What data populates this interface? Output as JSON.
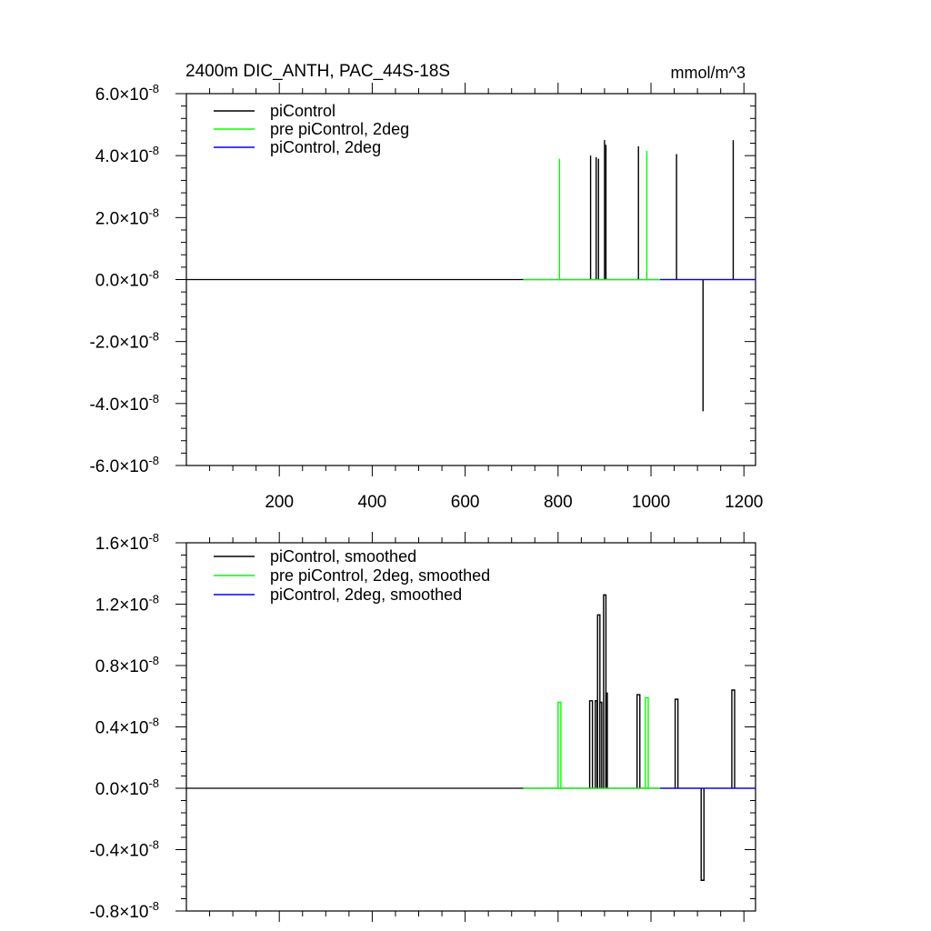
{
  "chart_data": [
    {
      "type": "line",
      "title": "2400m DIC_ANTH, PAC_44S-18S",
      "units": "mmol/m^3",
      "xlim": [
        0,
        1225
      ],
      "ylim": [
        -6e-08,
        6e-08
      ],
      "x_ticks": [
        200,
        400,
        600,
        800,
        1000,
        1200
      ],
      "x_tick_labels": [
        "200",
        "400",
        "600",
        "800",
        "1000",
        "1200"
      ],
      "y_ticks": [
        -6e-08,
        -4e-08,
        -2e-08,
        0,
        2e-08,
        4e-08,
        6e-08
      ],
      "y_tick_mantissas": [
        "-6.0",
        "-4.0",
        "-2.0",
        "0.0",
        "2.0",
        "4.0",
        "6.0"
      ],
      "y_tick_times": "×10",
      "y_tick_exponent": "-8",
      "legend_placement": "top-left",
      "series": [
        {
          "name": "piControl",
          "color": "#000000",
          "x_start": 0,
          "x_end": 1225,
          "spikes": [
            {
              "x": 870,
              "value": 4e-08
            },
            {
              "x": 882,
              "value": 3.95e-08
            },
            {
              "x": 887,
              "value": 3.9e-08
            },
            {
              "x": 900,
              "value": 4.5e-08
            },
            {
              "x": 903,
              "value": 4.35e-08
            },
            {
              "x": 973,
              "value": 4.3e-08
            },
            {
              "x": 1055,
              "value": 4.05e-08
            },
            {
              "x": 1112,
              "value": -4.25e-08
            },
            {
              "x": 1177,
              "value": 4.5e-08
            }
          ]
        },
        {
          "name": "pre piControl, 2deg",
          "color": "#00ff00",
          "x_start": 725,
          "x_end": 1020,
          "spikes": [
            {
              "x": 803,
              "value": 3.9e-08
            },
            {
              "x": 991,
              "value": 4.15e-08
            }
          ]
        },
        {
          "name": "piControl, 2deg",
          "color": "#0000ff",
          "x_start": 1020,
          "x_end": 1225,
          "spikes": []
        }
      ]
    },
    {
      "type": "line",
      "title": "",
      "units": "",
      "xlim": [
        0,
        1225
      ],
      "ylim": [
        -8e-09,
        1.6e-08
      ],
      "x_ticks": [
        200,
        400,
        600,
        800,
        1000,
        1200
      ],
      "x_tick_labels": [],
      "y_ticks": [
        -8e-09,
        -4e-09,
        0,
        4e-09,
        8e-09,
        1.2e-08,
        1.6e-08
      ],
      "y_tick_mantissas": [
        "-0.8",
        "-0.4",
        "0.0",
        "0.4",
        "0.8",
        "1.2",
        "1.6"
      ],
      "y_tick_times": "×10",
      "y_tick_exponent": "-8",
      "legend_placement": "top-left",
      "series": [
        {
          "name": "piControl, smoothed",
          "color": "#000000",
          "x_start": 0,
          "x_end": 1225,
          "pulses": [
            {
              "x0": 868,
              "x1": 874,
              "value": 5.7e-09
            },
            {
              "x0": 880,
              "x1": 884,
              "value": 5.7e-09
            },
            {
              "x0": 885,
              "x1": 890,
              "value": 1.13e-08
            },
            {
              "x0": 890,
              "x1": 894,
              "value": 5.6e-09
            },
            {
              "x0": 898,
              "x1": 903,
              "value": 1.26e-08
            },
            {
              "x0": 903,
              "x1": 906,
              "value": 6.2e-09
            },
            {
              "x0": 970,
              "x1": 976,
              "value": 6.1e-09
            },
            {
              "x0": 1052,
              "x1": 1058,
              "value": 5.8e-09
            },
            {
              "x0": 1108,
              "x1": 1114,
              "value": -6e-09
            },
            {
              "x0": 1174,
              "x1": 1180,
              "value": 6.4e-09
            }
          ]
        },
        {
          "name": "pre piControl, 2deg, smoothed",
          "color": "#00ff00",
          "x_start": 725,
          "x_end": 1020,
          "pulses": [
            {
              "x0": 800,
              "x1": 806,
              "value": 5.6e-09
            },
            {
              "x0": 988,
              "x1": 994,
              "value": 5.9e-09
            }
          ]
        },
        {
          "name": "piControl, 2deg, smoothed",
          "color": "#0000ff",
          "x_start": 1020,
          "x_end": 1225,
          "pulses": []
        }
      ]
    }
  ]
}
